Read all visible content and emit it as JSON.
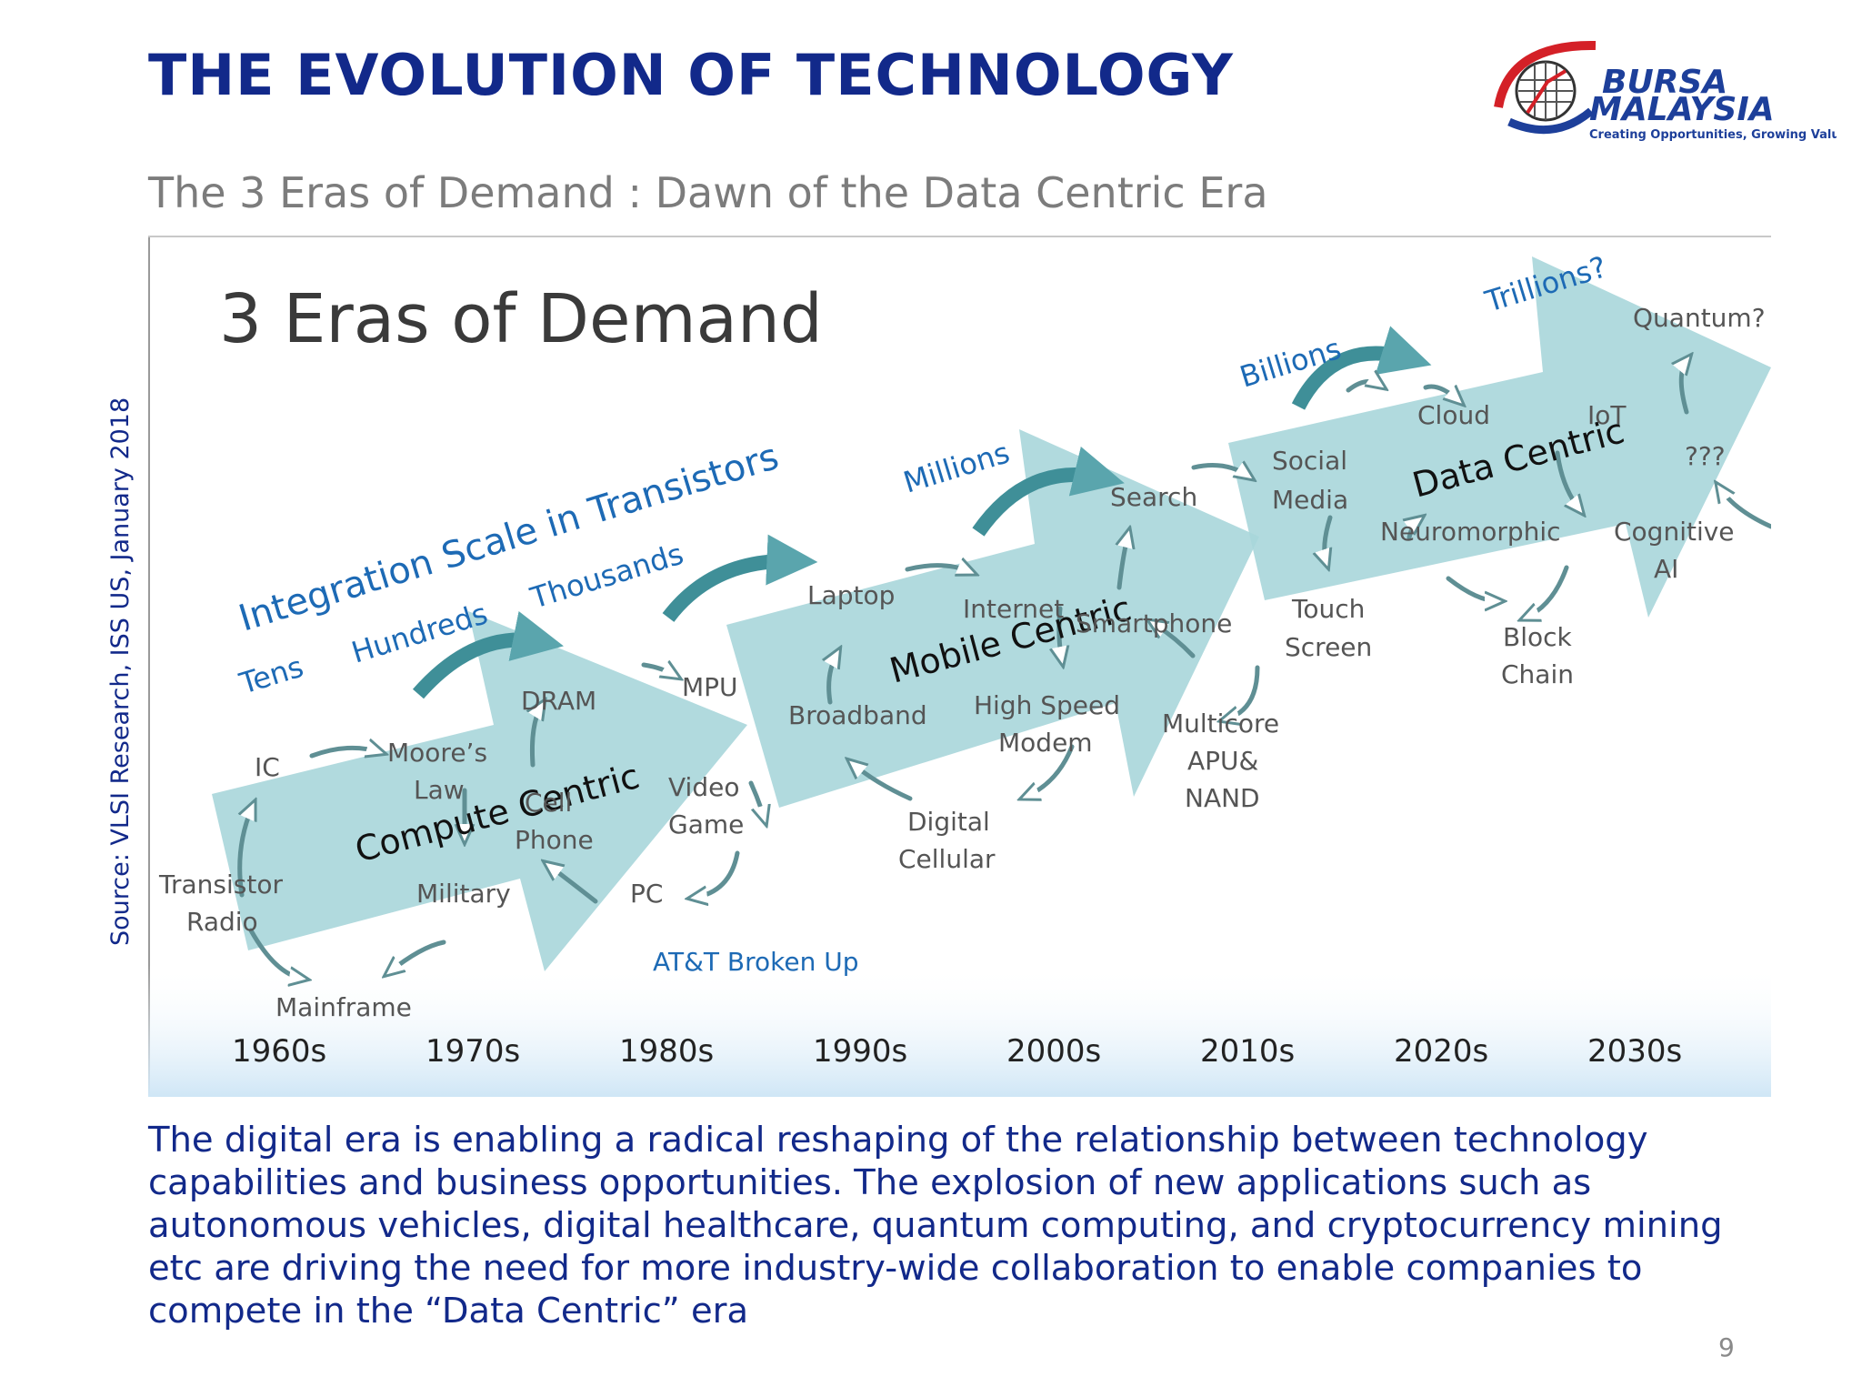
{
  "header": {
    "title": "THE EVOLUTION OF TECHNOLOGY",
    "subtitle": "The 3 Eras of Demand : Dawn of the Data Centric Era",
    "logo": {
      "line1": "BURSA",
      "line2": "MALAYSIA",
      "tagline": "Creating Opportunities, Growing Value"
    }
  },
  "source": "Source: VLSI Research, ISS US, January 2018",
  "diagram": {
    "heading": "3 Eras of Demand",
    "integration_label": "Integration Scale in Transistors",
    "scale": {
      "tens": "Tens",
      "hundreds": "Hundreds",
      "thousands": "Thousands",
      "millions": "Millions",
      "billions": "Billions",
      "trillions": "Trillions?"
    },
    "eras": {
      "compute": "Compute Centric",
      "mobile": "Mobile Centric",
      "data": "Data Centric"
    },
    "decades": [
      "1960s",
      "1970s",
      "1980s",
      "1990s",
      "2000s",
      "2010s",
      "2020s",
      "2030s"
    ],
    "items": {
      "ic": "IC",
      "transistor_radio_1": "Transistor",
      "transistor_radio_2": "Radio",
      "mainframe": "Mainframe",
      "moores_1": "Moore’s",
      "moores_2": "Law",
      "dram": "DRAM",
      "cell_1": "Cell",
      "cell_2": "Phone",
      "military": "Military",
      "mpu": "MPU",
      "video_1": "Video",
      "video_2": "Game",
      "pc": "PC",
      "att": "AT&T Broken Up",
      "laptop": "Laptop",
      "broadband": "Broadband",
      "internet": "Internet",
      "smartphone": "Smartphone",
      "hsm_1": "High Speed",
      "hsm_2": "Modem",
      "digital_1": "Digital",
      "digital_2": "Cellular",
      "search": "Search",
      "multicore_1": "Multicore",
      "multicore_2": "APU&",
      "multicore_3": "NAND",
      "social_1": "Social",
      "social_2": "Media",
      "touch_1": "Touch",
      "touch_2": "Screen",
      "cloud": "Cloud",
      "iot": "IoT",
      "neuromorphic": "Neuromorphic",
      "block_1": "Block",
      "block_2": "Chain",
      "cognitive_1": "Cognitive",
      "cognitive_2": "AI",
      "quantum": "Quantum?",
      "unknown": "???"
    }
  },
  "body_text": "The digital era is enabling a radical reshaping of the relationship between technology capabilities and business opportunities. The explosion of new applications such as autonomous vehicles, digital healthcare, quantum computing, and cryptocurrency mining etc are driving the need for more industry-wide collaboration to enable companies to compete in the “Data Centric” era",
  "page_number": "9",
  "colors": {
    "title": "#12298a",
    "subtitle": "#7c7c7c",
    "era_arrow": "#a9d6da",
    "scale_text": "#1d6ab5",
    "item_text": "#555555",
    "curve_arrow": "#3f8f98"
  }
}
